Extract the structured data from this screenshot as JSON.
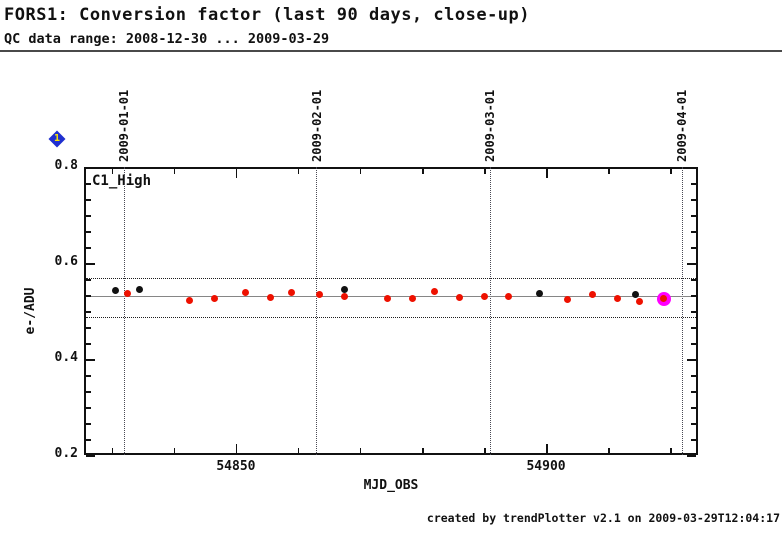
{
  "header": {
    "title": "FORS1: Conversion factor (last 90 days, close-up)",
    "subtitle": "QC data range: 2008-12-30 ... 2009-03-29"
  },
  "badge": {
    "label": "1",
    "color": "#2030cf",
    "text_color": "#ffe800"
  },
  "chart_data": {
    "type": "scatter",
    "series_label": "C1_High",
    "xlabel": "MJD_OBS",
    "ylabel": "e-/ADU",
    "xlim": [
      54825.5,
      54924.5
    ],
    "ylim": [
      0.2,
      0.8
    ],
    "x_major_ticks": [
      54850,
      54900
    ],
    "x_minor_step": 10,
    "y_major_ticks": [
      0.2,
      0.4,
      0.6,
      0.8
    ],
    "y_minor_divisions": 6,
    "date_lines": [
      {
        "label": "2009-01-01",
        "mjd": 54832
      },
      {
        "label": "2009-02-01",
        "mjd": 54863
      },
      {
        "label": "2009-03-01",
        "mjd": 54891
      },
      {
        "label": "2009-04-01",
        "mjd": 54922
      }
    ],
    "reference_lines": {
      "mean": 0.529,
      "upper_threshold": 0.566,
      "lower_threshold": 0.485,
      "mean_color": "#868686",
      "threshold_color": "#1d1d1d"
    },
    "series": [
      {
        "name": "black-points",
        "color": "#111111",
        "points": [
          [
            54830.5,
            0.543
          ],
          [
            54834.5,
            0.544
          ],
          [
            54867.5,
            0.544
          ],
          [
            54899.0,
            0.537
          ],
          [
            54914.5,
            0.535
          ]
        ]
      },
      {
        "name": "red-points",
        "color": "#ee1100",
        "points": [
          [
            54832.5,
            0.537
          ],
          [
            54842.5,
            0.521
          ],
          [
            54846.5,
            0.526
          ],
          [
            54851.5,
            0.538
          ],
          [
            54855.5,
            0.528
          ],
          [
            54859.0,
            0.539
          ],
          [
            54863.5,
            0.535
          ],
          [
            54867.5,
            0.53
          ],
          [
            54874.5,
            0.526
          ],
          [
            54878.5,
            0.526
          ],
          [
            54882.0,
            0.54
          ],
          [
            54886.0,
            0.528
          ],
          [
            54890.0,
            0.53
          ],
          [
            54894.0,
            0.531
          ],
          [
            54903.5,
            0.525
          ],
          [
            54907.5,
            0.534
          ],
          [
            54911.5,
            0.527
          ],
          [
            54915.0,
            0.52
          ],
          [
            54919.0,
            0.526
          ]
        ]
      }
    ],
    "highlight": {
      "point": [
        54919.0,
        0.526
      ],
      "ring_color": "#ff00ff"
    }
  },
  "footer": {
    "credit": "created by trendPlotter v2.1 on 2009-03-29T12:04:17"
  }
}
